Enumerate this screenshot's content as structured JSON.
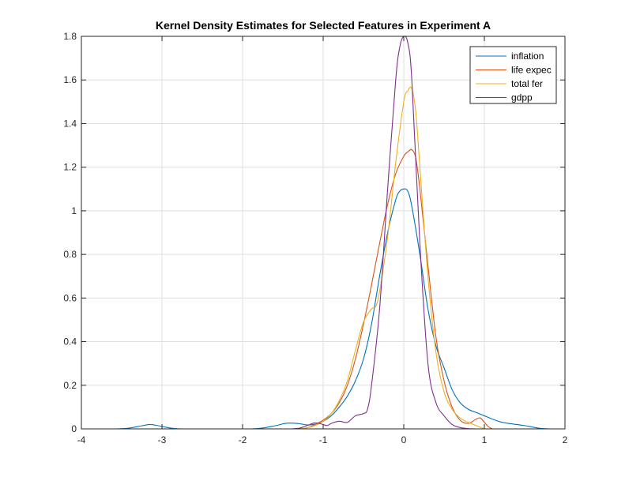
{
  "chart_data": {
    "type": "line",
    "title": "Kernel Density Estimates for Selected Features in Experiment A",
    "xlabel": "",
    "ylabel": "",
    "xlim": [
      -4,
      2
    ],
    "ylim": [
      0,
      1.8
    ],
    "xticks": [
      -4,
      -3,
      -2,
      -1,
      0,
      1,
      2
    ],
    "xtick_labels": [
      "-4",
      "-3",
      "-2",
      "-1",
      "0",
      "1",
      "2"
    ],
    "yticks": [
      0,
      0.2,
      0.4,
      0.6,
      0.8,
      1,
      1.2,
      1.4,
      1.6,
      1.8
    ],
    "ytick_labels": [
      "0",
      "0.2",
      "0.4",
      "0.6",
      "0.8",
      "1",
      "1.2",
      "1.4",
      "1.6",
      "1.8"
    ],
    "grid": true,
    "legend_position": "top-right",
    "series": [
      {
        "name": "inflation",
        "color": "#0072BD",
        "x": [
          -3.55,
          -3.4,
          -3.25,
          -3.15,
          -3.05,
          -2.9,
          -2.75,
          -2.5,
          -2.2,
          -1.9,
          -1.75,
          -1.6,
          -1.45,
          -1.3,
          -1.2,
          -1.1,
          -1.0,
          -0.9,
          -0.8,
          -0.7,
          -0.6,
          -0.5,
          -0.4,
          -0.3,
          -0.2,
          -0.1,
          -0.05,
          0.0,
          0.05,
          0.1,
          0.2,
          0.3,
          0.4,
          0.5,
          0.6,
          0.7,
          0.8,
          0.9,
          1.0,
          1.1,
          1.2,
          1.3,
          1.4,
          1.5,
          1.6,
          1.7,
          1.8
        ],
        "y": [
          0.0,
          0.004,
          0.014,
          0.02,
          0.015,
          0.004,
          0.0,
          0.0,
          0.0,
          0.0,
          0.004,
          0.014,
          0.026,
          0.024,
          0.018,
          0.022,
          0.035,
          0.06,
          0.1,
          0.15,
          0.22,
          0.32,
          0.48,
          0.7,
          0.9,
          1.05,
          1.09,
          1.1,
          1.09,
          1.02,
          0.8,
          0.55,
          0.38,
          0.28,
          0.18,
          0.12,
          0.09,
          0.075,
          0.06,
          0.045,
          0.032,
          0.025,
          0.02,
          0.015,
          0.008,
          0.002,
          0.0
        ]
      },
      {
        "name": "life expec",
        "color": "#D95319",
        "x": [
          -1.35,
          -1.2,
          -1.1,
          -1.0,
          -0.9,
          -0.8,
          -0.7,
          -0.6,
          -0.5,
          -0.4,
          -0.3,
          -0.2,
          -0.1,
          0.0,
          0.05,
          0.1,
          0.15,
          0.2,
          0.3,
          0.4,
          0.5,
          0.6,
          0.7,
          0.8,
          0.9,
          0.95,
          1.0,
          1.05,
          1.1
        ],
        "y": [
          0.0,
          0.005,
          0.02,
          0.04,
          0.07,
          0.12,
          0.2,
          0.32,
          0.48,
          0.66,
          0.85,
          1.03,
          1.17,
          1.25,
          1.27,
          1.28,
          1.24,
          1.1,
          0.75,
          0.42,
          0.22,
          0.1,
          0.04,
          0.025,
          0.045,
          0.05,
          0.03,
          0.01,
          0.0
        ]
      },
      {
        "name": "total fer",
        "color": "#EDB120",
        "x": [
          -1.35,
          -1.2,
          -1.1,
          -1.0,
          -0.9,
          -0.8,
          -0.7,
          -0.6,
          -0.5,
          -0.4,
          -0.35,
          -0.3,
          -0.2,
          -0.1,
          0.0,
          0.05,
          0.1,
          0.15,
          0.2,
          0.3,
          0.4,
          0.5,
          0.6,
          0.7,
          0.8,
          0.9,
          1.0
        ],
        "y": [
          0.0,
          0.005,
          0.015,
          0.035,
          0.07,
          0.13,
          0.22,
          0.36,
          0.49,
          0.55,
          0.56,
          0.63,
          0.88,
          1.22,
          1.5,
          1.55,
          1.56,
          1.45,
          1.2,
          0.7,
          0.35,
          0.17,
          0.09,
          0.05,
          0.03,
          0.015,
          0.0
        ]
      },
      {
        "name": "gdpp",
        "color": "#7E2F8E",
        "x": [
          -1.4,
          -1.3,
          -1.2,
          -1.1,
          -1.0,
          -0.95,
          -0.9,
          -0.8,
          -0.7,
          -0.6,
          -0.5,
          -0.45,
          -0.4,
          -0.3,
          -0.2,
          -0.1,
          -0.05,
          0.0,
          0.05,
          0.1,
          0.2,
          0.3,
          0.4,
          0.5,
          0.6,
          0.7,
          0.8,
          0.9,
          0.95
        ],
        "y": [
          0.0,
          0.003,
          0.015,
          0.028,
          0.02,
          0.015,
          0.025,
          0.035,
          0.03,
          0.06,
          0.07,
          0.09,
          0.2,
          0.55,
          1.1,
          1.6,
          1.75,
          1.8,
          1.77,
          1.6,
          0.85,
          0.3,
          0.12,
          0.06,
          0.02,
          0.006,
          0.001,
          0.0,
          0.0
        ]
      }
    ]
  }
}
